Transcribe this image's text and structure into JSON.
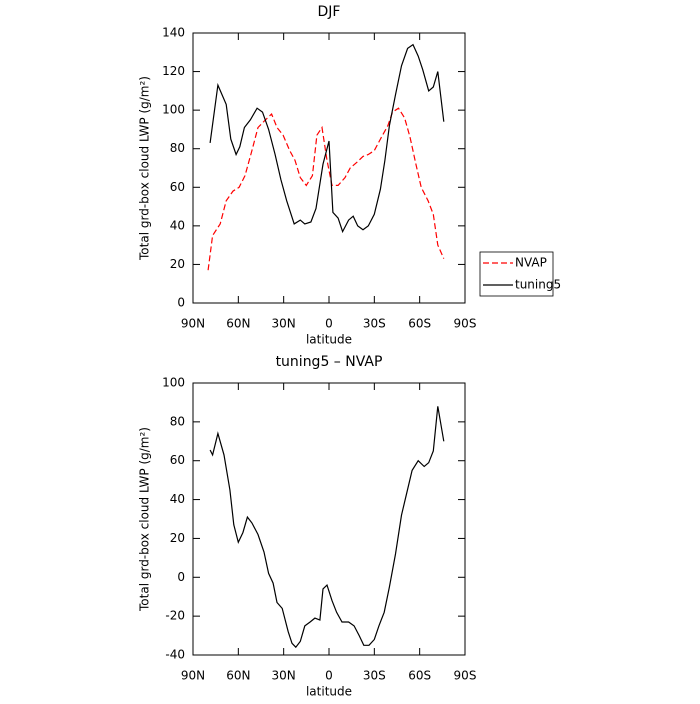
{
  "chart_data": [
    {
      "type": "line",
      "title": "DJF",
      "xlabel": "latitude",
      "ylabel": "Total grd-box cloud LWP (g/m²)",
      "xlim": [
        90,
        -90
      ],
      "xticks": [
        {
          "value": 90,
          "label": "90N"
        },
        {
          "value": 60,
          "label": "60N"
        },
        {
          "value": 30,
          "label": "30N"
        },
        0,
        {
          "value": -30,
          "label": "30S"
        },
        {
          "value": -60,
          "label": "60S"
        },
        {
          "value": -90,
          "label": "90S"
        }
      ],
      "ylim": [
        0,
        140
      ],
      "yticks": [
        0,
        20,
        40,
        60,
        80,
        100,
        120,
        140
      ],
      "legend": "right",
      "series": [
        {
          "name": "NVAP",
          "color": "#ff0000",
          "line_style": "dashed",
          "x": [
            80,
            77,
            72,
            68,
            63.5,
            59.5,
            55.6,
            51,
            47,
            42,
            38,
            34.4,
            30.4,
            26,
            22.5,
            19,
            15,
            11,
            8,
            4.6,
            1.3,
            -2,
            -6,
            -10.6,
            -14,
            -18.5,
            -22.5,
            -26,
            -30,
            -34,
            -39,
            -42,
            -46,
            -50,
            -53.6,
            -57.5,
            -61,
            -65.6,
            -69,
            -72,
            -76
          ],
          "values": [
            17,
            35,
            41,
            53,
            58,
            60,
            66,
            79,
            91,
            95,
            98,
            91,
            87,
            79,
            74,
            65,
            61,
            66,
            87,
            91,
            74,
            61,
            61,
            65,
            70,
            73,
            76,
            77,
            79,
            85,
            92,
            99,
            101,
            96,
            86,
            72,
            60,
            53,
            46,
            30,
            23
          ]
        },
        {
          "name": "tuning5",
          "color": "#000000",
          "line_style": "solid",
          "x": [
            78.7,
            73.5,
            68,
            65,
            61.5,
            59,
            56,
            52,
            47.6,
            44,
            40,
            35.7,
            31.8,
            28,
            23,
            19,
            16,
            12,
            8.6,
            4,
            0,
            -2.6,
            -6,
            -9,
            -13,
            -16,
            -19,
            -22.5,
            -26,
            -30,
            -34,
            -37,
            -40,
            -44,
            -48,
            -52,
            -55.6,
            -59,
            -62,
            -66,
            -69,
            -72,
            -76
          ],
          "values": [
            83,
            113,
            103,
            85,
            77,
            81,
            91,
            95,
            101,
            99,
            90,
            77,
            64,
            53,
            41,
            43,
            41,
            42,
            49,
            72,
            84,
            47,
            44,
            37,
            43,
            45,
            40,
            38,
            40,
            46,
            59,
            74,
            92,
            108,
            123,
            132,
            134,
            128,
            121,
            110,
            112,
            120,
            94
          ]
        }
      ]
    },
    {
      "type": "line",
      "title": "tuning5 – NVAP",
      "xlabel": "latitude",
      "ylabel": "Total grd-box cloud LWP (g/m²)",
      "xlim": [
        90,
        -90
      ],
      "xticks": [
        {
          "value": 90,
          "label": "90N"
        },
        {
          "value": 60,
          "label": "60N"
        },
        {
          "value": 30,
          "label": "30N"
        },
        0,
        {
          "value": -30,
          "label": "30S"
        },
        {
          "value": -60,
          "label": "60S"
        },
        {
          "value": -90,
          "label": "90S"
        }
      ],
      "ylim": [
        -40,
        100
      ],
      "yticks": [
        -40,
        -20,
        0,
        20,
        40,
        60,
        80,
        100
      ],
      "color": "#000000",
      "x": [
        78.7,
        77,
        73.5,
        69.5,
        65.6,
        63,
        60,
        57,
        54,
        51,
        47,
        43,
        40,
        37,
        34.4,
        31,
        27,
        24.5,
        22,
        19,
        16,
        12.5,
        9.3,
        6,
        4,
        1.3,
        -2,
        -5,
        -8.6,
        -13,
        -16.6,
        -20,
        -23,
        -26.5,
        -30,
        -33,
        -36.5,
        -40,
        -44,
        -48,
        -51,
        -55,
        -59,
        -63,
        -66,
        -69,
        -72,
        -76
      ],
      "values": [
        65.5,
        63,
        74,
        63,
        45,
        27,
        18,
        23,
        31,
        28,
        22,
        13,
        2,
        -3,
        -13,
        -16,
        -28,
        -34,
        -36,
        -33,
        -25,
        -23,
        -21,
        -22,
        -6,
        -4,
        -12,
        -18,
        -23,
        -23,
        -25,
        -30,
        -35,
        -35,
        -32,
        -25,
        -18,
        -5,
        12,
        32,
        42,
        55,
        60,
        57,
        59,
        65,
        88,
        70
      ]
    }
  ]
}
